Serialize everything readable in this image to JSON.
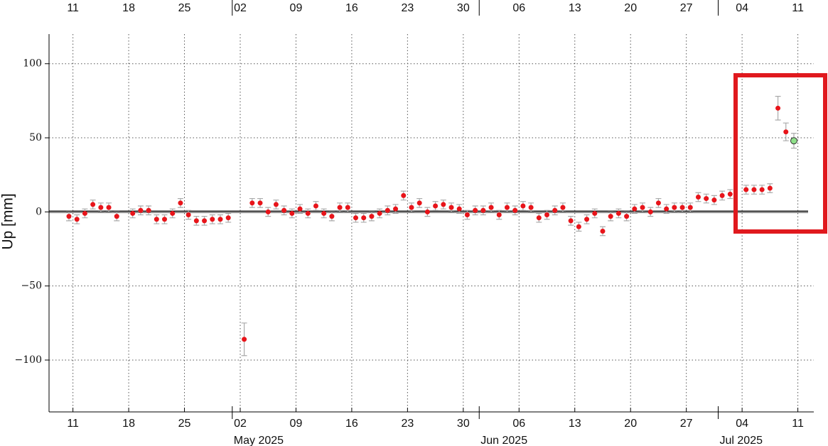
{
  "chart_data": {
    "type": "errorbar-scatter",
    "ylabel": "Up [mm]",
    "x": [
      "2025-04-10",
      "2025-04-11",
      "2025-04-12",
      "2025-04-13",
      "2025-04-14",
      "2025-04-15",
      "2025-04-16",
      "2025-04-18",
      "2025-04-19",
      "2025-04-20",
      "2025-04-21",
      "2025-04-22",
      "2025-04-23",
      "2025-04-24",
      "2025-04-25",
      "2025-04-26",
      "2025-04-27",
      "2025-04-28",
      "2025-04-29",
      "2025-04-30",
      "2025-05-02",
      "2025-05-03",
      "2025-05-04",
      "2025-05-05",
      "2025-05-06",
      "2025-05-07",
      "2025-05-08",
      "2025-05-09",
      "2025-05-10",
      "2025-05-11",
      "2025-05-12",
      "2025-05-13",
      "2025-05-14",
      "2025-05-15",
      "2025-05-16",
      "2025-05-17",
      "2025-05-18",
      "2025-05-19",
      "2025-05-20",
      "2025-05-21",
      "2025-05-22",
      "2025-05-23",
      "2025-05-24",
      "2025-05-25",
      "2025-05-26",
      "2025-05-27",
      "2025-05-28",
      "2025-05-29",
      "2025-05-30",
      "2025-05-31",
      "2025-06-01",
      "2025-06-02",
      "2025-06-03",
      "2025-06-04",
      "2025-06-05",
      "2025-06-06",
      "2025-06-07",
      "2025-06-08",
      "2025-06-09",
      "2025-06-10",
      "2025-06-11",
      "2025-06-12",
      "2025-06-13",
      "2025-06-14",
      "2025-06-15",
      "2025-06-16",
      "2025-06-17",
      "2025-06-18",
      "2025-06-19",
      "2025-06-20",
      "2025-06-21",
      "2025-06-22",
      "2025-06-23",
      "2025-06-24",
      "2025-06-25",
      "2025-06-26",
      "2025-06-27",
      "2025-06-28",
      "2025-06-29",
      "2025-06-30",
      "2025-07-01",
      "2025-07-02",
      "2025-07-04",
      "2025-07-05",
      "2025-07-06",
      "2025-07-07",
      "2025-07-08",
      "2025-07-09",
      "2025-07-10"
    ],
    "values": [
      -3,
      -5,
      -1,
      5,
      3,
      3,
      -3,
      -1,
      1,
      1,
      -5,
      -5,
      -1,
      6,
      -2,
      -6,
      -6,
      -5,
      -5,
      -4,
      -86,
      6,
      6,
      0,
      5,
      1,
      -1,
      2,
      -1,
      4,
      -1,
      -3,
      3,
      3,
      -4,
      -4,
      -3,
      -1,
      1,
      2,
      11,
      3,
      6,
      0,
      4,
      5,
      3,
      2,
      -2,
      1,
      1,
      3,
      -2,
      3,
      1,
      4,
      3,
      -4,
      -2,
      1,
      3,
      -6,
      -10,
      -5,
      -1,
      -13,
      -3,
      -1,
      -3,
      2,
      3,
      0,
      6,
      2,
      3,
      3,
      3,
      10,
      9,
      8,
      11,
      12,
      15,
      15,
      15,
      16,
      70,
      54,
      48
    ],
    "errors": [
      3,
      3,
      3,
      3,
      3,
      3,
      3,
      3,
      3,
      3,
      3,
      3,
      3,
      3,
      3,
      3,
      3,
      3,
      3,
      3,
      11,
      3,
      3,
      3,
      3,
      3,
      3,
      3,
      3,
      3,
      3,
      3,
      3,
      3,
      3,
      3,
      3,
      3,
      3,
      3,
      3,
      3,
      3,
      3,
      3,
      3,
      3,
      3,
      3,
      3,
      3,
      3,
      3,
      3,
      3,
      3,
      3,
      3,
      3,
      3,
      3,
      3,
      3,
      3,
      3,
      3,
      3,
      3,
      3,
      3,
      3,
      3,
      3,
      3,
      3,
      3,
      3,
      3,
      3,
      3,
      3,
      3,
      3,
      3,
      3,
      3,
      8,
      6,
      5
    ],
    "color": "#e8141a",
    "last_point_color": "#8fe08a",
    "error_color": "#aaaaaa",
    "xlim": [
      "2025-04-08",
      "2025-07-13"
    ],
    "xticks": [
      {
        "value": "2025-04-11",
        "label": "11"
      },
      {
        "value": "2025-04-18",
        "label": "18"
      },
      {
        "value": "2025-04-25",
        "label": "25"
      },
      {
        "value": "2025-05-02",
        "label": "02"
      },
      {
        "value": "2025-05-09",
        "label": "09"
      },
      {
        "value": "2025-05-16",
        "label": "16"
      },
      {
        "value": "2025-05-23",
        "label": "23"
      },
      {
        "value": "2025-05-30",
        "label": "30"
      },
      {
        "value": "2025-06-06",
        "label": "06"
      },
      {
        "value": "2025-06-13",
        "label": "13"
      },
      {
        "value": "2025-06-20",
        "label": "20"
      },
      {
        "value": "2025-06-27",
        "label": "27"
      },
      {
        "value": "2025-07-04",
        "label": "04"
      },
      {
        "value": "2025-07-11",
        "label": "11"
      }
    ],
    "month_ticks": [
      {
        "value": "2025-05-01",
        "label": "May 2025"
      },
      {
        "value": "2025-06-01",
        "label": "Jun 2025"
      },
      {
        "value": "2025-07-01",
        "label": "Jul 2025"
      }
    ],
    "ylim": [
      -135,
      120
    ],
    "yticks": [
      {
        "value": -100,
        "label": "−100"
      },
      {
        "value": -50,
        "label": "−50"
      },
      0,
      50,
      100
    ],
    "grid": true
  }
}
